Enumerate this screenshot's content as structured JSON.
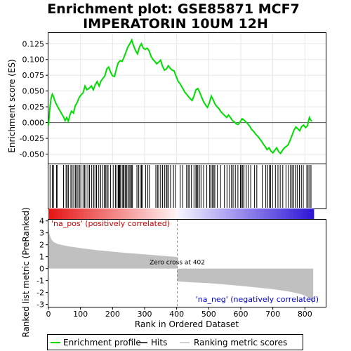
{
  "chart_data": [
    {
      "type": "line",
      "title": "Enrichment plot: GSE85871 MCF7 IMPERATORIN 10UM 12H",
      "title_lines": [
        "Enrichment plot: GSE85871 MCF7",
        "IMPERATORIN 10UM 12H"
      ],
      "ylabel": "Enrichment score (ES)",
      "xlim": [
        0,
        865
      ],
      "ylim": [
        -0.065,
        0.142
      ],
      "yticks": [
        0.125,
        0.1,
        0.075,
        0.05,
        0.025,
        0.0,
        -0.025,
        -0.05
      ],
      "ytick_labels": [
        "0.125",
        "0.100",
        "0.075",
        "0.050",
        "0.025",
        "0.000",
        "-0.025",
        "-0.050"
      ],
      "grid": true,
      "color": "#00dd00",
      "series": [
        {
          "name": "Enrichment profile",
          "x": [
            0,
            4,
            8,
            12,
            16,
            22,
            30,
            40,
            48,
            52,
            57,
            62,
            67,
            72,
            78,
            84,
            90,
            96,
            102,
            108,
            114,
            120,
            128,
            134,
            140,
            146,
            152,
            158,
            164,
            170,
            176,
            182,
            188,
            194,
            200,
            206,
            212,
            218,
            224,
            230,
            236,
            242,
            248,
            254,
            260,
            266,
            272,
            278,
            284,
            290,
            296,
            302,
            308,
            314,
            320,
            326,
            332,
            338,
            344,
            350,
            356,
            362,
            368,
            374,
            380,
            386,
            392,
            398,
            404,
            410,
            418,
            426,
            434,
            442,
            448,
            454,
            460,
            466,
            472,
            478,
            484,
            490,
            496,
            502,
            508,
            514,
            520,
            526,
            532,
            538,
            544,
            550,
            556,
            562,
            568,
            574,
            580,
            586,
            592,
            598,
            604,
            610,
            616,
            622,
            628,
            634,
            640,
            646,
            652,
            658,
            664,
            670,
            676,
            682,
            688,
            694,
            700,
            706,
            712,
            718,
            724,
            730,
            736,
            742,
            748,
            754,
            760,
            766,
            772,
            778,
            784,
            790,
            796,
            802,
            808,
            814,
            818,
            822
          ],
          "y": [
            -0.005,
            0.02,
            0.038,
            0.045,
            0.041,
            0.032,
            0.024,
            0.015,
            0.008,
            0.003,
            0.008,
            0.002,
            0.012,
            0.018,
            0.015,
            0.027,
            0.032,
            0.04,
            0.044,
            0.047,
            0.058,
            0.052,
            0.055,
            0.058,
            0.052,
            0.06,
            0.065,
            0.058,
            0.066,
            0.07,
            0.074,
            0.085,
            0.088,
            0.08,
            0.074,
            0.073,
            0.085,
            0.095,
            0.098,
            0.097,
            0.104,
            0.112,
            0.12,
            0.125,
            0.131,
            0.121,
            0.114,
            0.109,
            0.12,
            0.125,
            0.118,
            0.116,
            0.118,
            0.114,
            0.105,
            0.1,
            0.097,
            0.093,
            0.096,
            0.099,
            0.089,
            0.083,
            0.085,
            0.09,
            0.086,
            0.083,
            0.082,
            0.074,
            0.066,
            0.062,
            0.055,
            0.048,
            0.043,
            0.038,
            0.035,
            0.042,
            0.052,
            0.054,
            0.048,
            0.04,
            0.033,
            0.028,
            0.024,
            0.031,
            0.042,
            0.036,
            0.029,
            0.025,
            0.022,
            0.017,
            0.014,
            0.011,
            0.008,
            0.012,
            0.008,
            0.003,
            0.001,
            -0.002,
            -0.003,
            0.001,
            0.006,
            0.004,
            0.001,
            -0.002,
            -0.006,
            -0.011,
            -0.014,
            -0.018,
            -0.021,
            -0.025,
            -0.029,
            -0.034,
            -0.038,
            -0.043,
            -0.04,
            -0.045,
            -0.048,
            -0.044,
            -0.04,
            -0.046,
            -0.049,
            -0.044,
            -0.04,
            -0.038,
            -0.035,
            -0.028,
            -0.02,
            -0.012,
            -0.007,
            -0.01,
            -0.013,
            -0.006,
            -0.004,
            -0.008,
            -0.005,
            0.008,
            0.004,
            0.002
          ]
        }
      ],
      "zero_line_y": 0
    },
    {
      "type": "hits",
      "label": "Hits",
      "hit_positions": [
        5,
        12,
        16,
        25,
        27,
        47,
        55,
        58,
        62,
        70,
        74,
        79,
        84,
        88,
        92,
        97,
        101,
        108,
        113,
        117,
        123,
        128,
        135,
        141,
        145,
        150,
        157,
        163,
        169,
        174,
        178,
        182,
        186,
        194,
        202,
        209,
        214,
        218,
        220,
        222,
        224,
        230,
        233,
        236,
        240,
        244,
        248,
        252,
        256,
        259,
        262,
        276,
        281,
        286,
        290,
        293,
        303,
        310,
        315,
        335,
        340,
        344,
        350,
        356,
        362,
        367,
        370,
        375,
        381,
        390,
        396,
        411,
        419,
        431,
        436,
        440,
        446,
        454,
        460,
        463,
        466,
        471,
        476,
        484,
        494,
        503,
        507,
        511,
        516,
        519,
        527,
        537,
        549,
        557,
        565,
        571,
        576,
        583,
        591,
        599,
        602,
        606,
        610,
        617,
        623,
        631,
        643,
        650,
        667,
        678,
        684,
        689,
        693,
        699,
        708,
        716,
        723,
        731,
        741,
        749,
        755,
        760,
        765,
        770,
        776,
        783,
        789,
        795,
        806,
        810,
        815,
        819
      ]
    },
    {
      "type": "bar",
      "label": "Ranking metric scores",
      "title": "",
      "ylabel": "Ranked list metric (PreRanked)",
      "xlabel": "Rank in Ordered Dataset",
      "xlim": [
        0,
        865
      ],
      "ylim": [
        -3.2,
        4.1
      ],
      "xticks": [
        0,
        100,
        200,
        300,
        400,
        500,
        600,
        700,
        800
      ],
      "xtick_labels": [
        "0",
        "100",
        "200",
        "300",
        "400",
        "500",
        "600",
        "700",
        "800"
      ],
      "yticks": [
        4,
        3,
        2,
        1,
        0,
        -1,
        -2,
        -3
      ],
      "ytick_labels": [
        "4",
        "3",
        "2",
        "1",
        "0",
        "-1",
        "-2",
        "-3"
      ],
      "fill_color": "#c0c0c0",
      "profile_x": [
        0,
        3,
        8,
        15,
        30,
        60,
        100,
        150,
        200,
        250,
        300,
        350,
        401,
        402,
        405,
        450,
        500,
        550,
        600,
        650,
        700,
        750,
        790,
        810,
        820,
        826
      ],
      "profile_y": [
        3.4,
        2.9,
        2.5,
        2.25,
        2.05,
        1.88,
        1.72,
        1.55,
        1.42,
        1.3,
        1.2,
        1.08,
        0.98,
        -1.05,
        -1.08,
        -1.15,
        -1.22,
        -1.33,
        -1.45,
        -1.58,
        -1.72,
        -1.92,
        -2.15,
        -2.4,
        -2.75,
        -3.0
      ],
      "zero_cross_rank": 402,
      "zero_cross_label": "Zero cross at 402",
      "pos_label": "'na_pos' (positively correlated)",
      "neg_label": "'na_neg' (negatively correlated)",
      "pos_color": "#cc0000",
      "neg_color": "#0000cc",
      "n_genes": 826
    }
  ],
  "legend": {
    "items": [
      {
        "label": "Enrichment profile",
        "color": "#00dd00"
      },
      {
        "label": "Hits",
        "color": "#000000"
      },
      {
        "label": "Ranking metric scores",
        "color": "#c0c0c0"
      }
    ]
  }
}
